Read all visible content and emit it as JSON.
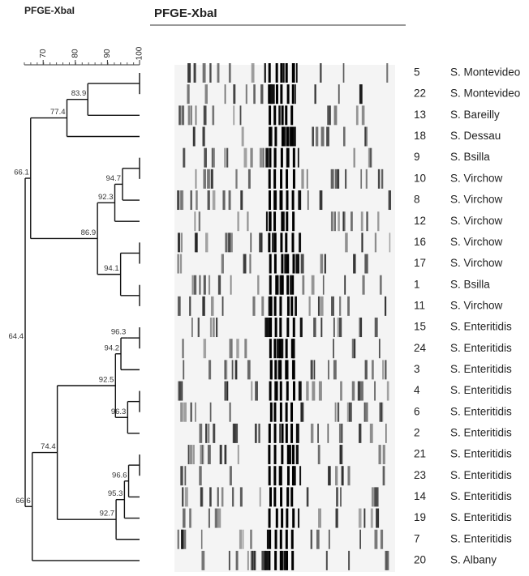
{
  "header": {
    "left_title": "PFGE-XbaI",
    "title": "PFGE-XbaI"
  },
  "scale": {
    "ticks": [
      70,
      80,
      90,
      100
    ]
  },
  "rows": [
    {
      "number": "5",
      "name": "S. Montevideo"
    },
    {
      "number": "22",
      "name": "S. Montevideo"
    },
    {
      "number": "13",
      "name": "S. Bareilly"
    },
    {
      "number": "18",
      "name": "S. Dessau"
    },
    {
      "number": "9",
      "name": "S. Bsilla"
    },
    {
      "number": "10",
      "name": "S. Virchow"
    },
    {
      "number": "8",
      "name": "S. Virchow"
    },
    {
      "number": "12",
      "name": "S. Virchow"
    },
    {
      "number": "16",
      "name": "S. Virchow"
    },
    {
      "number": "17",
      "name": "S. Virchow"
    },
    {
      "number": "1",
      "name": "S. Bsilla"
    },
    {
      "number": "11",
      "name": "S. Virchow"
    },
    {
      "number": "15",
      "name": "S. Enteritidis"
    },
    {
      "number": "24",
      "name": "S. Enteritidis"
    },
    {
      "number": "3",
      "name": "S. Enteritidis"
    },
    {
      "number": "4",
      "name": "S. Enteritidis"
    },
    {
      "number": "6",
      "name": "S. Enteritidis"
    },
    {
      "number": "2",
      "name": "S. Enteritidis"
    },
    {
      "number": "21",
      "name": "S. Enteritidis"
    },
    {
      "number": "23",
      "name": "S. Enteritidis"
    },
    {
      "number": "14",
      "name": "S. Enteritidis"
    },
    {
      "number": "19",
      "name": "S. Enteritidis"
    },
    {
      "number": "7",
      "name": "S. Enteritidis"
    },
    {
      "number": "20",
      "name": "S. Albany"
    }
  ],
  "tree": {
    "value": 64.4,
    "children": [
      {
        "value": 66.1,
        "children": [
          {
            "value": 77.4,
            "children": [
              {
                "value": 83.9,
                "children": [
                  [
                    0,
                    1
                  ],
                  2
                ]
              },
              3
            ]
          },
          {
            "value": 86.9,
            "children": [
              {
                "value": 92.3,
                "children": [
                  {
                    "value": 94.7,
                    "children": [
                      [
                        4,
                        5
                      ],
                      6
                    ]
                  },
                  7
                ]
              },
              {
                "value": 94.1,
                "children": [
                  [
                    8,
                    9
                  ],
                  [
                    10,
                    11
                  ]
                ]
              }
            ]
          }
        ]
      },
      {
        "value": 66.6,
        "children": [
          {
            "value": 74.4,
            "children": [
              {
                "value": 92.5,
                "children": [
                  {
                    "value": 94.2,
                    "children": [
                      {
                        "value": 96.3,
                        "children": [
                          [
                            12,
                            13
                          ]
                        ]
                      },
                      14
                    ]
                  },
                  {
                    "value": 96.3,
                    "children": [
                      [
                        15,
                        16
                      ],
                      17
                    ]
                  }
                ]
              },
              {
                "value": 92.7,
                "children": [
                  {
                    "value": 95.3,
                    "children": [
                      {
                        "value": 96.6,
                        "children": [
                          [
                            18,
                            19
                          ],
                          20
                        ]
                      },
                      21
                    ]
                  },
                  22
                ]
              }
            ]
          },
          23
        ]
      }
    ]
  }
}
